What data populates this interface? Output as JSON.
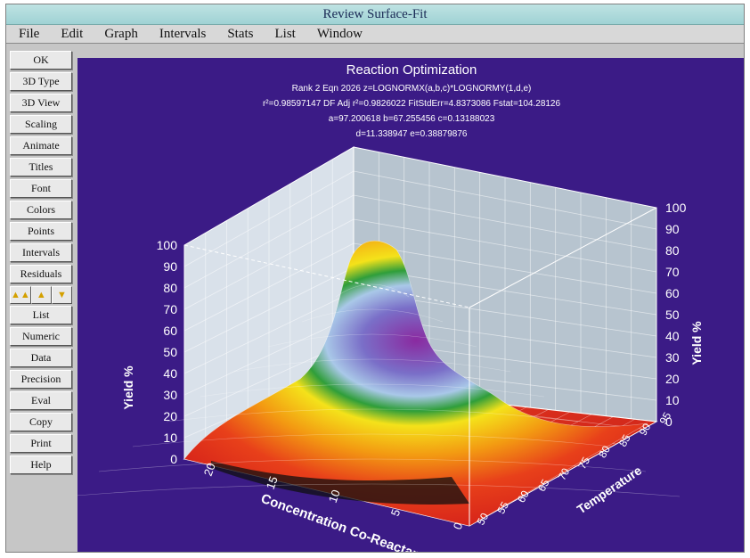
{
  "window": {
    "title": "Review Surface-Fit"
  },
  "menu": [
    "File",
    "Edit",
    "Graph",
    "Intervals",
    "Stats",
    "List",
    "Window"
  ],
  "sidebar": {
    "buttons_top": [
      "OK",
      "3D Type",
      "3D View",
      "Scaling",
      "Animate",
      "Titles",
      "Font",
      "Colors",
      "Points",
      "Intervals",
      "Residuals"
    ],
    "arrows": [
      "▲▲",
      "▲",
      "▼"
    ],
    "buttons_bottom": [
      "List",
      "Numeric",
      "Data",
      "Precision",
      "Eval",
      "Copy",
      "Print",
      "Help"
    ]
  },
  "chart": {
    "title": "Reaction Optimization",
    "eq_line": "Rank 2  Eqn 2026  z=LOGNORMX(a,b,c)*LOGNORMY(1,d,e)",
    "stats_line": "r²=0.98597147  DF Adj r²=0.9826022  FitStdErr=4.8373086  Fstat=104.28126",
    "params_line1": "a=97.200618  b=67.255456  c=0.13188023",
    "params_line2": "d=11.338947  e=0.38879876"
  },
  "chart_data": {
    "type": "surface",
    "title": "Reaction Optimization",
    "z_axis_label": "Yield %",
    "z_range": [
      0,
      100
    ],
    "z_ticks": [
      "0",
      "10",
      "20",
      "30",
      "40",
      "50",
      "60",
      "70",
      "80",
      "90",
      "100"
    ],
    "x_axis_label": "Concentration Co-Reactant",
    "x_ticks": [
      "20",
      "15",
      "10",
      "5",
      "0"
    ],
    "y_axis_label": "Temperature",
    "y_ticks": [
      "50",
      "55",
      "60",
      "65",
      "70",
      "75",
      "80",
      "85",
      "90",
      "95"
    ],
    "peak": {
      "x": 11.3,
      "y": 67.3,
      "z": 97.2
    }
  }
}
